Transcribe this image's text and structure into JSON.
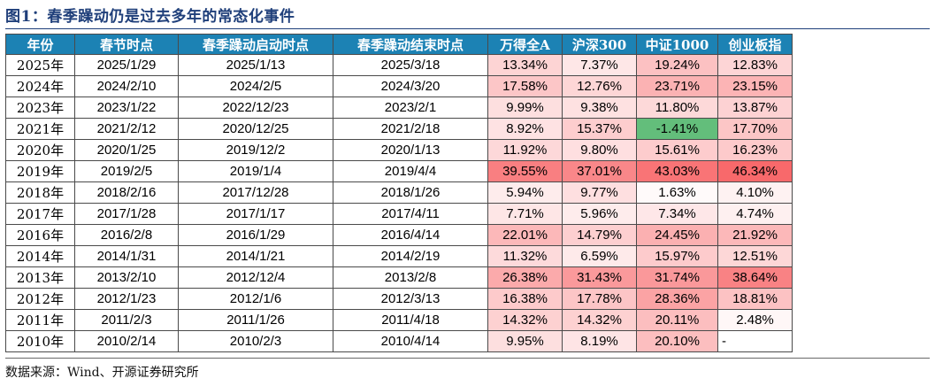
{
  "title": "图1：春季躁动仍是过去多年的常态化事件",
  "source": "数据来源：Wind、开源证券研究所",
  "table": {
    "headers": [
      "年份",
      "春节时点",
      "春季躁动启动时点",
      "春季躁动结束时点",
      "万得全A",
      "沪深300",
      "中证1000",
      "创业板指"
    ],
    "rows": [
      [
        "2025年",
        "2025/1/29",
        "2025/1/13",
        "2025/3/18",
        "13.34%",
        "7.37%",
        "19.24%",
        "12.83%"
      ],
      [
        "2024年",
        "2024/2/10",
        "2024/2/5",
        "2024/3/20",
        "17.58%",
        "12.76%",
        "23.71%",
        "23.15%"
      ],
      [
        "2023年",
        "2023/1/22",
        "2022/12/23",
        "2023/2/1",
        "9.99%",
        "9.38%",
        "11.80%",
        "13.87%"
      ],
      [
        "2021年",
        "2021/2/12",
        "2020/12/25",
        "2021/2/18",
        "8.92%",
        "15.37%",
        "-1.41%",
        "17.70%"
      ],
      [
        "2020年",
        "2020/1/25",
        "2019/12/2",
        "2020/1/13",
        "11.92%",
        "9.80%",
        "15.61%",
        "16.23%"
      ],
      [
        "2019年",
        "2019/2/5",
        "2019/1/4",
        "2019/4/4",
        "39.55%",
        "37.01%",
        "43.03%",
        "46.34%"
      ],
      [
        "2018年",
        "2018/2/16",
        "2017/12/28",
        "2018/1/26",
        "5.94%",
        "9.77%",
        "1.63%",
        "4.10%"
      ],
      [
        "2017年",
        "2017/1/28",
        "2017/1/17",
        "2017/4/11",
        "7.71%",
        "5.96%",
        "7.34%",
        "4.74%"
      ],
      [
        "2016年",
        "2016/2/8",
        "2016/1/29",
        "2016/4/14",
        "22.01%",
        "14.79%",
        "24.45%",
        "21.92%"
      ],
      [
        "2014年",
        "2014/1/31",
        "2014/1/21",
        "2014/2/19",
        "11.32%",
        "6.59%",
        "15.97%",
        "12.51%"
      ],
      [
        "2013年",
        "2013/2/10",
        "2012/12/4",
        "2013/2/8",
        "26.38%",
        "31.43%",
        "31.74%",
        "38.64%"
      ],
      [
        "2012年",
        "2012/1/23",
        "2012/1/6",
        "2012/3/13",
        "16.38%",
        "17.78%",
        "28.36%",
        "18.81%"
      ],
      [
        "2011年",
        "2011/2/3",
        "2011/1/26",
        "2011/4/18",
        "14.32%",
        "14.32%",
        "20.11%",
        "2.48%"
      ],
      [
        "2010年",
        "2010/2/14",
        "2010/2/3",
        "2010/4/14",
        "9.95%",
        "8.19%",
        "20.10%",
        "-"
      ]
    ],
    "heatmap": {
      "columns_from": 4,
      "positive_color": "#f8696b",
      "neutral_color": "#ffffff",
      "negative_color": "#63be7b",
      "scale_max": 46.34
    }
  }
}
